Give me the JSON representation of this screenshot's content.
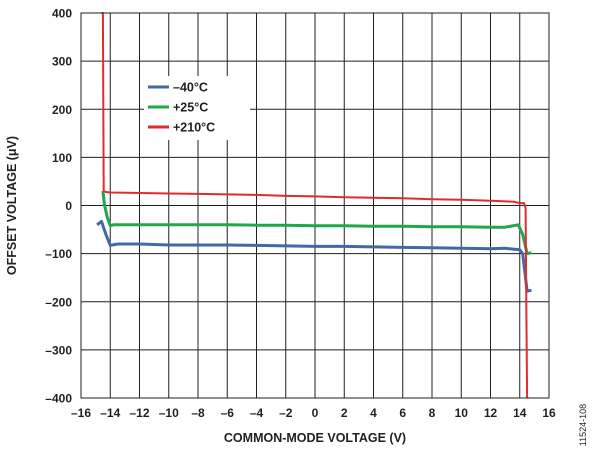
{
  "chart_data": {
    "type": "line",
    "xlabel": "COMMON-MODE VOLTAGE (V)",
    "ylabel": "OFFSET VOLTAGE (μV)",
    "xlim": [
      -16,
      16
    ],
    "ylim": [
      -400,
      400
    ],
    "xticks": [
      -16,
      -14,
      -12,
      -10,
      -8,
      -6,
      -4,
      -2,
      0,
      2,
      4,
      6,
      8,
      10,
      12,
      14,
      16
    ],
    "xtick_labels": [
      "–16",
      "–14",
      "–12",
      "–10",
      "–8",
      "–6",
      "–4",
      "–2",
      "0",
      "2",
      "4",
      "6",
      "8",
      "10",
      "12",
      "14",
      "16"
    ],
    "yticks": [
      -400,
      -300,
      -200,
      -100,
      0,
      100,
      200,
      300,
      400
    ],
    "ytick_labels": [
      "–400",
      "–300",
      "–200",
      "–100",
      "0",
      "100",
      "200",
      "300",
      "400"
    ],
    "grid": true,
    "legend_position": "upper-left",
    "series": [
      {
        "name": "–40°C",
        "color": "#4169a8",
        "x": [
          -14.9,
          -14.6,
          -14.3,
          -14.0,
          -13.5,
          -12,
          -10,
          -8,
          -6,
          -4,
          -2,
          0,
          2,
          4,
          6,
          8,
          10,
          12,
          13,
          14,
          14.2,
          14.5,
          14.8
        ],
        "y": [
          -40,
          -33,
          -60,
          -83,
          -80,
          -80,
          -82,
          -82,
          -82,
          -83,
          -84,
          -85,
          -85,
          -86,
          -87,
          -88,
          -89,
          -90,
          -89,
          -92,
          -100,
          -178,
          -176
        ]
      },
      {
        "name": "+25°C",
        "color": "#1fa84a",
        "x": [
          -14.5,
          -14.4,
          -14.2,
          -14.0,
          -13.8,
          -12,
          -10,
          -8,
          -6,
          -4,
          -2,
          0,
          2,
          4,
          6,
          8,
          10,
          12,
          13,
          13.9,
          14.2,
          14.5,
          14.8
        ],
        "y": [
          30,
          2,
          -25,
          -42,
          -40,
          -40,
          -40,
          -40,
          -40,
          -41,
          -41,
          -42,
          -42,
          -43,
          -43,
          -44,
          -44,
          -45,
          -45,
          -40,
          -60,
          -100,
          -98
        ]
      },
      {
        "name": "+210°C",
        "color": "#e32b2b",
        "x": [
          -14.6,
          -14.5,
          -14.45,
          -14.3,
          -14.0,
          -12,
          -10,
          -8,
          -6,
          -4,
          -2,
          0,
          2,
          4,
          6,
          8,
          10,
          12,
          13.6,
          14.0,
          14.3,
          14.4,
          14.45,
          14.5
        ],
        "y": [
          400,
          400,
          30,
          28,
          27,
          26,
          25,
          24,
          23,
          22,
          20,
          19,
          17,
          16,
          15,
          13,
          12,
          10,
          8,
          5,
          5,
          -5,
          -200,
          -400
        ]
      }
    ],
    "figure_id": "11524-108"
  }
}
